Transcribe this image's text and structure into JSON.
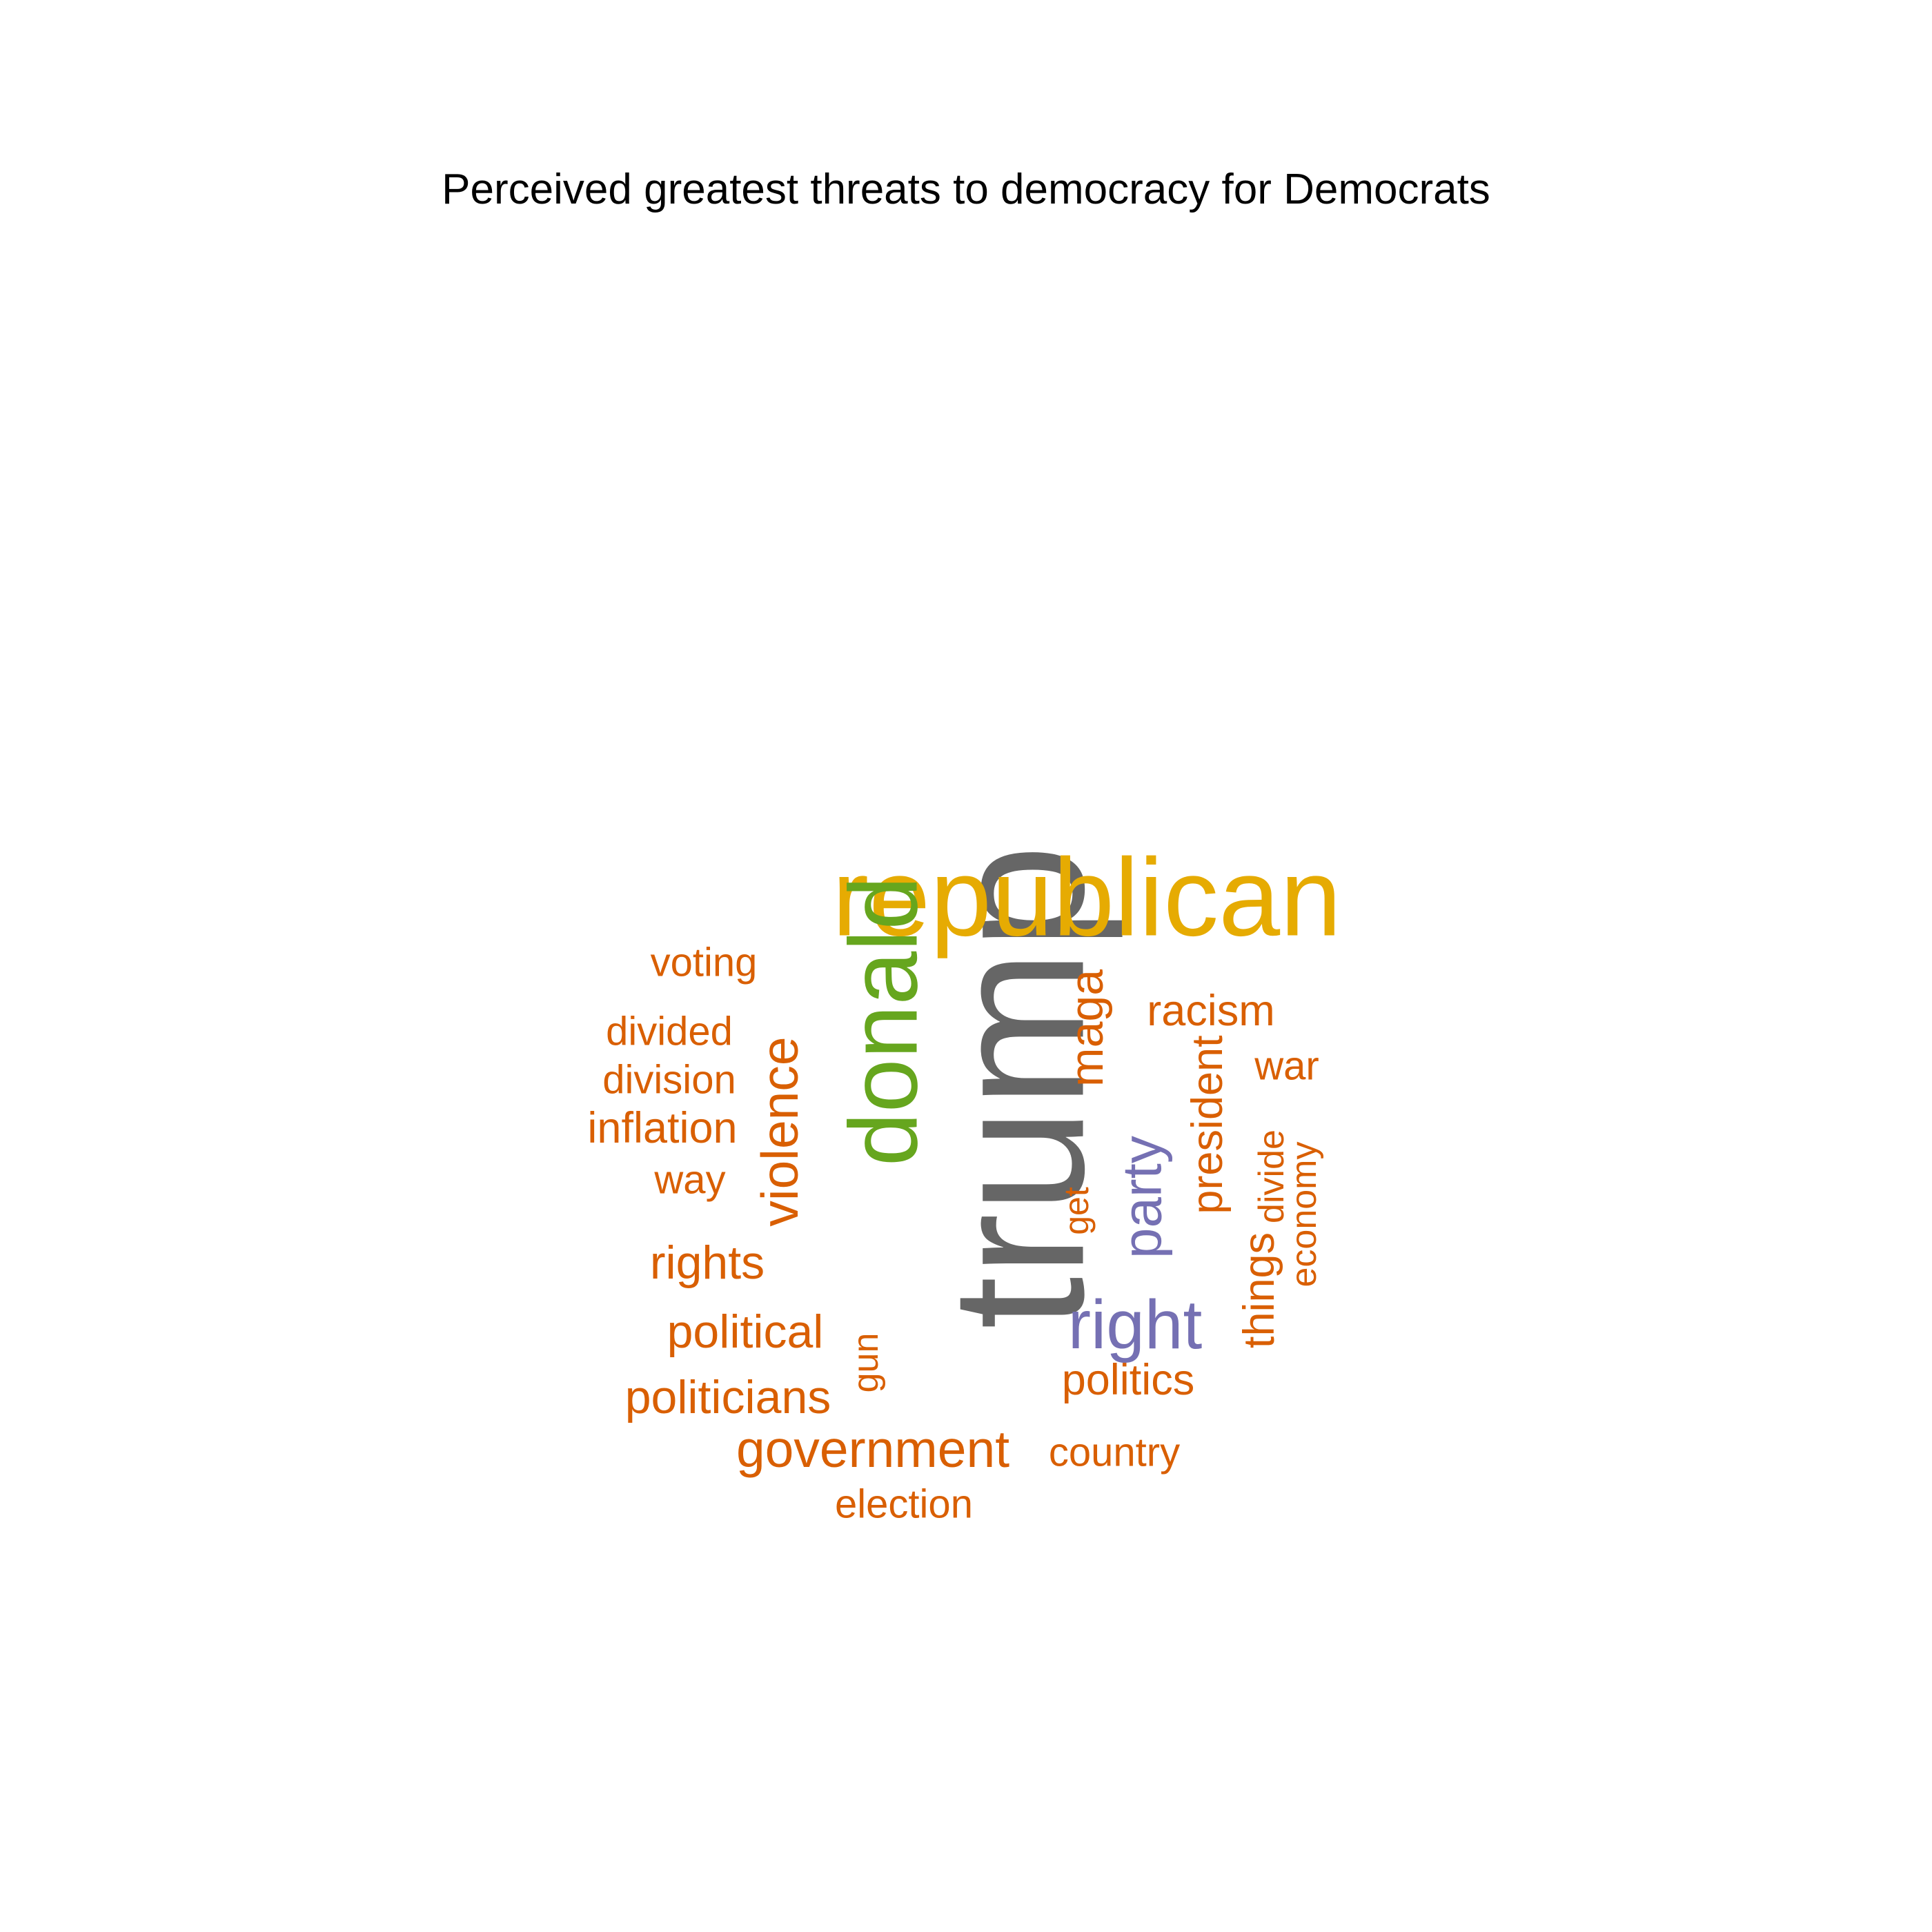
{
  "title": "Perceived greatest threats to democracy for Democrats",
  "colors": {
    "background": "#ffffff",
    "title": "#000000",
    "gray": "#666666",
    "gold": "#E6AB02",
    "green": "#66A61E",
    "purple": "#7570B3",
    "orange": "#D95F02"
  },
  "words": [
    {
      "text": "trump",
      "color": "gray",
      "rotated": true
    },
    {
      "text": "republican",
      "color": "gold",
      "rotated": false
    },
    {
      "text": "donald",
      "color": "green",
      "rotated": true
    },
    {
      "text": "right",
      "color": "purple",
      "rotated": false
    },
    {
      "text": "party",
      "color": "purple",
      "rotated": true
    },
    {
      "text": "violence",
      "color": "orange",
      "rotated": true
    },
    {
      "text": "maga",
      "color": "orange",
      "rotated": true
    },
    {
      "text": "government",
      "color": "orange",
      "rotated": false
    },
    {
      "text": "politicians",
      "color": "orange",
      "rotated": false
    },
    {
      "text": "political",
      "color": "orange",
      "rotated": false
    },
    {
      "text": "rights",
      "color": "orange",
      "rotated": false
    },
    {
      "text": "inflation",
      "color": "orange",
      "rotated": false
    },
    {
      "text": "president",
      "color": "orange",
      "rotated": true
    },
    {
      "text": "racism",
      "color": "orange",
      "rotated": false
    },
    {
      "text": "politics",
      "color": "orange",
      "rotated": false
    },
    {
      "text": "things",
      "color": "orange",
      "rotated": true
    },
    {
      "text": "division",
      "color": "orange",
      "rotated": false
    },
    {
      "text": "divided",
      "color": "orange",
      "rotated": false
    },
    {
      "text": "way",
      "color": "orange",
      "rotated": false
    },
    {
      "text": "voting",
      "color": "orange",
      "rotated": false
    },
    {
      "text": "war",
      "color": "orange",
      "rotated": false
    },
    {
      "text": "election",
      "color": "orange",
      "rotated": false
    },
    {
      "text": "country",
      "color": "orange",
      "rotated": false
    },
    {
      "text": "divide",
      "color": "orange",
      "rotated": true
    },
    {
      "text": "economy",
      "color": "orange",
      "rotated": true
    },
    {
      "text": "gun",
      "color": "orange",
      "rotated": true
    },
    {
      "text": "get",
      "color": "orange",
      "rotated": true
    }
  ]
}
